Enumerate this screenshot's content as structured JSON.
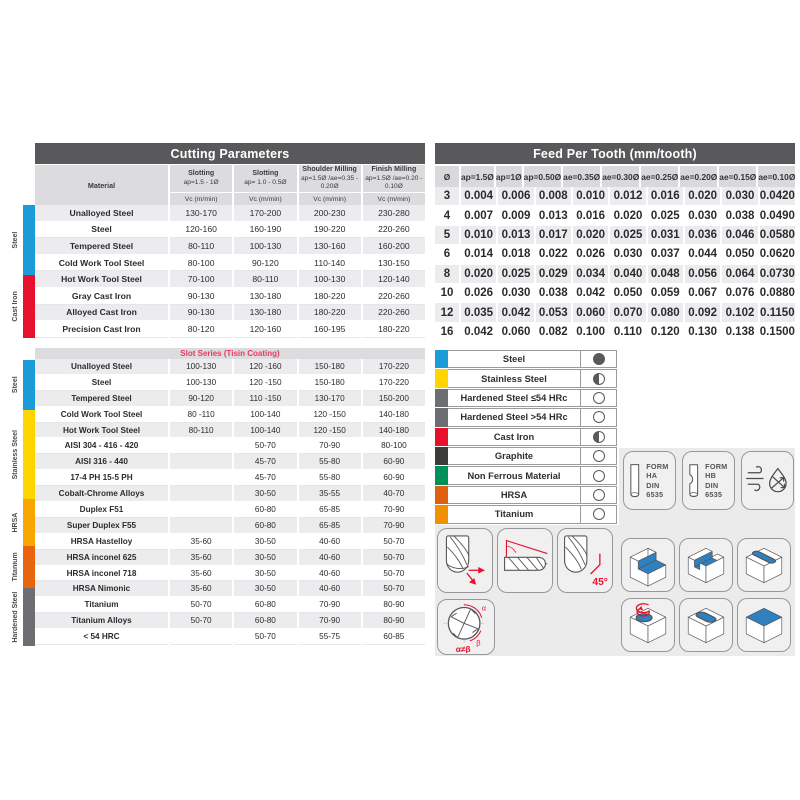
{
  "cutting": {
    "title": "Cutting Parameters",
    "material_label": "Material",
    "unit": "Vc (m/min)",
    "col_headers": [
      {
        "name": "Slotting",
        "param": "ap=1.5 - 1Ø"
      },
      {
        "name": "Slotting",
        "param": "ap= 1.0 - 0.5Ø"
      },
      {
        "name": "Shoulder Milling",
        "param": "ap=1.5Ø /ae=0.35 - 0.20Ø"
      },
      {
        "name": "Finish Milling",
        "param": "ap=1.5Ø /ae=0.20 - 0.10Ø"
      }
    ],
    "groups": [
      {
        "label": "Steel",
        "color": "#1b9cd8",
        "rows": [
          [
            "Unalloyed Steel",
            "130-170",
            "170-200",
            "200-230",
            "230-280"
          ],
          [
            "Steel",
            "120-160",
            "160-190",
            "190-220",
            "220-260"
          ],
          [
            "Tempered Steel",
            "80-110",
            "100-130",
            "130-160",
            "160-200"
          ],
          [
            "Cold Work Tool Steel",
            "80-100",
            "90-120",
            "110-140",
            "130-150"
          ],
          [
            "Hot Work Tool Steel",
            "70-100",
            "80-110",
            "100-130",
            "120-140"
          ]
        ]
      },
      {
        "label": "Cast Iron",
        "color": "#e8112d",
        "rows": [
          [
            "Gray Cast Iron",
            "90-130",
            "130-180",
            "180-220",
            "220-260"
          ],
          [
            "Alloyed Cast Iron",
            "90-130",
            "130-180",
            "180-220",
            "220-260"
          ],
          [
            "Precision Cast Iron",
            "80-120",
            "120-160",
            "160-195",
            "180-220"
          ]
        ]
      }
    ]
  },
  "slot": {
    "title": "Slot Series (Tisin Coating)",
    "title_color": "#e8395f",
    "groups": [
      {
        "label": "Steel",
        "color": "#1b9cd8",
        "row_count": 5
      },
      {
        "label": "Stainless Steel",
        "color": "#ffd500",
        "row_count": 6
      },
      {
        "label": "HRSA",
        "color": "#f7a600",
        "row_count": 4
      },
      {
        "label": "Titanium",
        "color": "#e8650d",
        "row_count": 2
      },
      {
        "label": "Hardened Steel",
        "color": "#6d6e71",
        "row_count": 1
      }
    ],
    "rows": [
      [
        "Unalloyed Steel",
        "100-130",
        "120 -160",
        "150-180",
        "170-220"
      ],
      [
        "Steel",
        "100-130",
        "120 -150",
        "150-180",
        "170-220"
      ],
      [
        "Tempered Steel",
        "90-120",
        "110 -150",
        "130-170",
        "150-200"
      ],
      [
        "Cold Work Tool Steel",
        "80 -110",
        "100-140",
        "120 -150",
        "140-180"
      ],
      [
        "Hot Work Tool Steel",
        "80-110",
        "100-140",
        "120 -150",
        "140-180"
      ],
      [
        "AISI 304 - 416 - 420",
        "",
        "50-70",
        "70-90",
        "80-100"
      ],
      [
        "AISI 316 - 440",
        "",
        "45-70",
        "55-80",
        "60-90"
      ],
      [
        "17-4 PH 15-5 PH",
        "",
        "45-70",
        "55-80",
        "60-90"
      ],
      [
        "Cobalt-Chrome Alloys",
        "",
        "30-50",
        "35-55",
        "40-70"
      ],
      [
        "Duplex F51",
        "",
        "60-80",
        "65-85",
        "70-90"
      ],
      [
        "Super Duplex F55",
        "",
        "60-80",
        "65-85",
        "70-90"
      ],
      [
        "HRSA Hastelloy",
        "35-60",
        "30-50",
        "40-60",
        "50-70"
      ],
      [
        "HRSA inconel 625",
        "35-60",
        "30-50",
        "40-60",
        "50-70"
      ],
      [
        "HRSA inconel 718",
        "35-60",
        "30-50",
        "40-60",
        "50-70"
      ],
      [
        "HRSA Nimonic",
        "35-60",
        "30-50",
        "40-60",
        "50-70"
      ],
      [
        "Titanium",
        "50-70",
        "60-80",
        "70-90",
        "80-90"
      ],
      [
        "Titanium Alloys",
        "50-70",
        "60-80",
        "70-90",
        "80-90"
      ],
      [
        "< 54 HRC",
        "",
        "50-70",
        "55-75",
        "60-85"
      ]
    ]
  },
  "feed": {
    "title": "Feed Per Tooth (mm/tooth)",
    "columns": [
      "Ø",
      "ap=1.5Ø",
      "ap=1Ø",
      "ap=0.50Ø",
      "ae=0.35Ø",
      "ae=0.30Ø",
      "ae=0.25Ø",
      "ae=0.20Ø",
      "ae=0.15Ø",
      "ae=0.10Ø"
    ],
    "rows": [
      [
        "3",
        "0.004",
        "0.006",
        "0.008",
        "0.010",
        "0.012",
        "0.016",
        "0.020",
        "0.030",
        "0.0420"
      ],
      [
        "4",
        "0.007",
        "0.009",
        "0.013",
        "0.016",
        "0.020",
        "0.025",
        "0.030",
        "0.038",
        "0.0490"
      ],
      [
        "5",
        "0.010",
        "0.013",
        "0.017",
        "0.020",
        "0.025",
        "0.031",
        "0.036",
        "0.046",
        "0.0580"
      ],
      [
        "6",
        "0.014",
        "0.018",
        "0.022",
        "0.026",
        "0.030",
        "0.037",
        "0.044",
        "0.050",
        "0.0620"
      ],
      [
        "8",
        "0.020",
        "0.025",
        "0.029",
        "0.034",
        "0.040",
        "0.048",
        "0.056",
        "0.064",
        "0.0730"
      ],
      [
        "10",
        "0.026",
        "0.030",
        "0.038",
        "0.042",
        "0.050",
        "0.059",
        "0.067",
        "0.076",
        "0.0880"
      ],
      [
        "12",
        "0.035",
        "0.042",
        "0.053",
        "0.060",
        "0.070",
        "0.080",
        "0.092",
        "0.102",
        "0.1150"
      ],
      [
        "16",
        "0.042",
        "0.060",
        "0.082",
        "0.100",
        "0.110",
        "0.120",
        "0.130",
        "0.138",
        "0.1500"
      ]
    ]
  },
  "legend": {
    "items": [
      {
        "label": "Steel",
        "color": "#1b9cd8",
        "marker": "full"
      },
      {
        "label": "Stainless Steel",
        "color": "#ffd500",
        "marker": "half"
      },
      {
        "label": "Hardened Steel ≤54 HRc",
        "color": "#6d6e71",
        "marker": "empty"
      },
      {
        "label": "Hardened Steel >54 HRc",
        "color": "#6d6e71",
        "marker": "empty"
      },
      {
        "label": "Cast Iron",
        "color": "#e8112d",
        "marker": "half"
      },
      {
        "label": "Graphite",
        "color": "#3c3c3b",
        "marker": "empty"
      },
      {
        "label": "Non Ferrous Material",
        "color": "#00915a",
        "marker": "empty"
      },
      {
        "label": "HRSA",
        "color": "#e0600f",
        "marker": "empty"
      },
      {
        "label": "Titanium",
        "color": "#f29100",
        "marker": "empty"
      }
    ]
  },
  "icons": {
    "form_ha": [
      "FORM",
      "HA DIN",
      "6535"
    ],
    "form_hb": [
      "FORM",
      "HB DIN",
      "6535"
    ],
    "helix_angle": "45°",
    "alpha": "α",
    "beta": "β",
    "alpha_beta": "α≠β",
    "accent_red": "#e8112d",
    "block_blue": "#2e80bf"
  }
}
